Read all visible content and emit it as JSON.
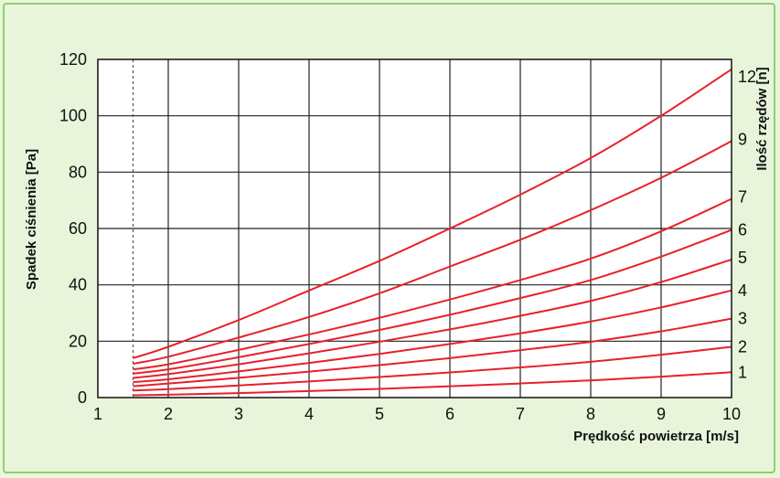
{
  "chart_data": {
    "type": "line",
    "title": "",
    "xlabel": "Prędkość  powietrza [m/s]",
    "ylabel": "Spadek  ciśnienia [Pa]",
    "y2label": "Ilość rzędów [n]",
    "xlim": [
      1,
      10
    ],
    "ylim": [
      0,
      120
    ],
    "x_ticks": [
      1,
      2,
      3,
      4,
      5,
      6,
      7,
      8,
      9,
      10
    ],
    "y_ticks": [
      0,
      20,
      40,
      60,
      80,
      100,
      120
    ],
    "grid": true,
    "start_marker_x": 1.5,
    "line_color": "#e8202a",
    "series": [
      {
        "name": "1",
        "x": [
          1.5,
          2,
          3,
          4,
          5,
          6,
          7,
          8,
          9,
          10
        ],
        "y": [
          0.8,
          1.0,
          1.6,
          2.3,
          3.1,
          4.0,
          5.0,
          6.1,
          7.4,
          9.0
        ]
      },
      {
        "name": "2",
        "x": [
          1.5,
          2,
          3,
          4,
          5,
          6,
          7,
          8,
          9,
          10
        ],
        "y": [
          2.5,
          3.0,
          4.3,
          5.7,
          7.3,
          8.9,
          10.7,
          12.7,
          15.2,
          18.0
        ]
      },
      {
        "name": "3",
        "x": [
          1.5,
          2,
          3,
          4,
          5,
          6,
          7,
          8,
          9,
          10
        ],
        "y": [
          4.0,
          5.0,
          7.0,
          9.2,
          11.5,
          14.0,
          16.8,
          19.8,
          23.5,
          28.0
        ]
      },
      {
        "name": "4",
        "x": [
          1.5,
          2,
          3,
          4,
          5,
          6,
          7,
          8,
          9,
          10
        ],
        "y": [
          5.5,
          6.5,
          9.3,
          12.3,
          15.5,
          19.0,
          22.8,
          27.0,
          32.0,
          38.0
        ]
      },
      {
        "name": "5",
        "x": [
          1.5,
          2,
          3,
          4,
          5,
          6,
          7,
          8,
          9,
          10
        ],
        "y": [
          7.0,
          8.3,
          11.8,
          15.7,
          19.8,
          24.2,
          29.0,
          34.3,
          41.0,
          49.0
        ]
      },
      {
        "name": "6",
        "x": [
          1.5,
          2,
          3,
          4,
          5,
          6,
          7,
          8,
          9,
          10
        ],
        "y": [
          8.5,
          10.0,
          14.3,
          19.0,
          24.0,
          29.4,
          35.3,
          41.7,
          50.0,
          59.5
        ]
      },
      {
        "name": "7",
        "x": [
          1.5,
          2,
          3,
          4,
          5,
          6,
          7,
          8,
          9,
          10
        ],
        "y": [
          10.0,
          11.8,
          16.9,
          22.4,
          28.3,
          34.8,
          41.7,
          49.3,
          59.0,
          70.5
        ]
      },
      {
        "name": "9",
        "x": [
          1.5,
          2,
          3,
          4,
          5,
          6,
          7,
          8,
          9,
          10
        ],
        "y": [
          12.0,
          14.5,
          21.3,
          28.6,
          37.0,
          46.5,
          56.0,
          66.5,
          78.0,
          91.0
        ]
      },
      {
        "name": "12",
        "x": [
          1.5,
          2,
          3,
          4,
          5,
          6,
          7,
          8,
          9,
          10
        ],
        "y": [
          14.0,
          18.0,
          27.5,
          38.0,
          48.5,
          60.0,
          72.0,
          85.0,
          100.0,
          116.5
        ]
      }
    ]
  }
}
